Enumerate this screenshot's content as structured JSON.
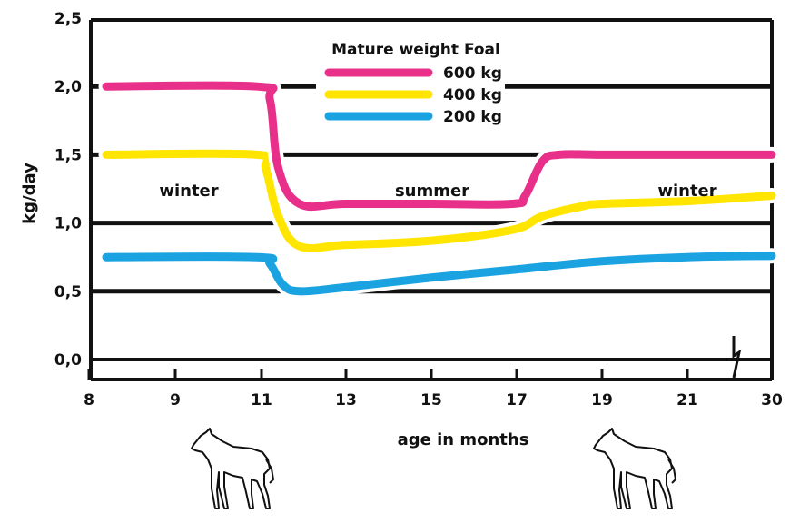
{
  "chart_data": {
    "type": "line",
    "xlabel": "age in months",
    "ylabel": "kg/day",
    "x_ticks": [
      "8",
      "9",
      "11",
      "13",
      "15",
      "17",
      "19",
      "21",
      "30"
    ],
    "y_ticks": [
      "0,0",
      "0,5",
      "1,0",
      "1,5",
      "2,0",
      "2,5"
    ],
    "ylim": [
      0,
      2.5
    ],
    "grid": true,
    "axis_break": "x-axis between 21 and 30",
    "legend": {
      "title": "Mature weight Foal",
      "placement": "top-center"
    },
    "season_labels": [
      "winter",
      "summer",
      "winter"
    ],
    "series": [
      {
        "name": "600 kg",
        "color": "#e8308a",
        "points": [
          [
            8.2,
            2.0
          ],
          [
            10.9,
            2.0
          ],
          [
            11.2,
            1.9
          ],
          [
            11.4,
            1.4
          ],
          [
            11.9,
            1.14
          ],
          [
            13,
            1.14
          ],
          [
            15,
            1.14
          ],
          [
            16.9,
            1.14
          ],
          [
            17.2,
            1.2
          ],
          [
            17.6,
            1.45
          ],
          [
            18.0,
            1.5
          ],
          [
            19,
            1.5
          ],
          [
            21,
            1.5
          ],
          [
            30,
            1.5
          ]
        ]
      },
      {
        "name": "400 kg",
        "color": "#ffe500",
        "points": [
          [
            8.2,
            1.5
          ],
          [
            10.9,
            1.5
          ],
          [
            11.1,
            1.4
          ],
          [
            11.4,
            1.05
          ],
          [
            11.9,
            0.83
          ],
          [
            13,
            0.84
          ],
          [
            15,
            0.87
          ],
          [
            16.9,
            0.95
          ],
          [
            17.6,
            1.05
          ],
          [
            18.5,
            1.12
          ],
          [
            19,
            1.14
          ],
          [
            21,
            1.16
          ],
          [
            30,
            1.2
          ]
        ]
      },
      {
        "name": "200 kg",
        "color": "#1aa3e0",
        "points": [
          [
            8.2,
            0.75
          ],
          [
            10.9,
            0.75
          ],
          [
            11.2,
            0.7
          ],
          [
            11.5,
            0.55
          ],
          [
            11.9,
            0.5
          ],
          [
            13,
            0.53
          ],
          [
            15,
            0.6
          ],
          [
            17,
            0.66
          ],
          [
            19,
            0.72
          ],
          [
            21,
            0.75
          ],
          [
            30,
            0.76
          ]
        ]
      }
    ]
  },
  "icons": [
    "foal-icon",
    "foal-icon"
  ]
}
